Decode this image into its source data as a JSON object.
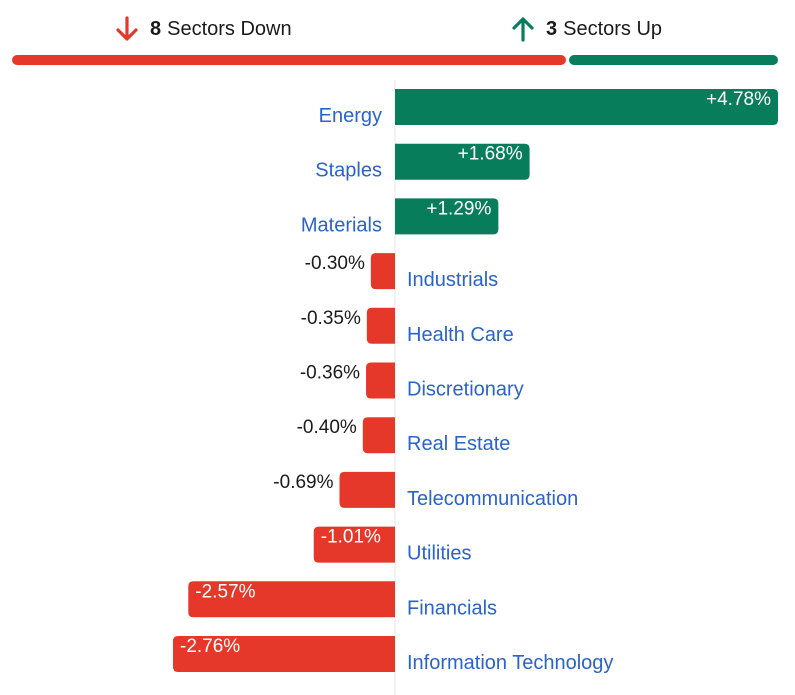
{
  "summary": {
    "down": {
      "count": "8",
      "label": "Sectors Down",
      "color": "#e5382a",
      "icon": "arrow-down-icon"
    },
    "up": {
      "count": "3",
      "label": "Sectors Up",
      "color": "#087d5c",
      "icon": "arrow-up-icon"
    }
  },
  "chart_data": {
    "type": "bar",
    "orientation": "horizontal",
    "categories": [
      "Energy",
      "Staples",
      "Materials",
      "Industrials",
      "Health Care",
      "Discretionary",
      "Real Estate",
      "Telecommunication",
      "Utilities",
      "Financials",
      "Information Technology"
    ],
    "values": [
      4.78,
      1.68,
      1.29,
      -0.3,
      -0.35,
      -0.36,
      -0.4,
      -0.69,
      -1.01,
      -2.57,
      -2.76
    ],
    "value_labels": [
      "+4.78%",
      "+1.68%",
      "+1.29%",
      "-0.30%",
      "-0.35%",
      "-0.36%",
      "-0.40%",
      "-0.69%",
      "-1.01%",
      "-2.57%",
      "-2.76%"
    ],
    "colors": {
      "positive": "#087d5c",
      "negative": "#e5382a",
      "label": "#2a63c9"
    },
    "xlim": [
      -2.76,
      4.78
    ],
    "grid": false
  }
}
